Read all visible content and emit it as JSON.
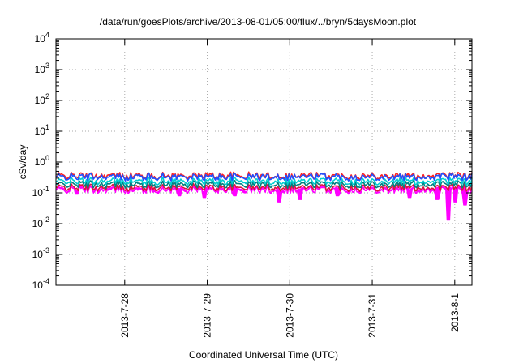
{
  "chart_data": {
    "type": "line",
    "title": "/data/run/goesPlots/archive/2013-08-01/05:00/flux/../bryn/5daysMoon.plot",
    "xlabel": "Coordinated Universal Time (UTC)",
    "ylabel": "cSv/day",
    "yscale": "log",
    "ylim": [
      0.0001,
      10000
    ],
    "xlim": [
      "2013-07-27 04:00",
      "2013-08-01 05:00"
    ],
    "grid": true,
    "y_ticks": [
      {
        "base": "10",
        "exp": "-4",
        "value": 0.0001
      },
      {
        "base": "10",
        "exp": "-3",
        "value": 0.001
      },
      {
        "base": "10",
        "exp": "-2",
        "value": 0.01
      },
      {
        "base": "10",
        "exp": "-1",
        "value": 0.1
      },
      {
        "base": "10",
        "exp": "0",
        "value": 1
      },
      {
        "base": "10",
        "exp": "1",
        "value": 10
      },
      {
        "base": "10",
        "exp": "2",
        "value": 100
      },
      {
        "base": "10",
        "exp": "3",
        "value": 1000
      },
      {
        "base": "10",
        "exp": "4",
        "value": 10000
      }
    ],
    "x_ticks": [
      {
        "label": "2013-7-28",
        "date": "2013-07-28 00:00"
      },
      {
        "label": "2013-7-29",
        "date": "2013-07-29 00:00"
      },
      {
        "label": "2013-7-30",
        "date": "2013-07-30 00:00"
      },
      {
        "label": "2013-7-31",
        "date": "2013-07-31 00:00"
      },
      {
        "label": "2013-8-1",
        "date": "2013-08-01 00:00"
      }
    ],
    "series": [
      {
        "color": "#ff00ff",
        "level": 0.12,
        "fill": true,
        "dips": [
          {
            "date": "2013-07-27 10:00",
            "value": 0.09
          },
          {
            "date": "2013-07-28 16:00",
            "value": 0.08
          },
          {
            "date": "2013-07-28 23:00",
            "value": 0.07
          },
          {
            "date": "2013-07-29 08:00",
            "value": 0.08
          },
          {
            "date": "2013-07-29 21:00",
            "value": 0.05
          },
          {
            "date": "2013-07-30 03:00",
            "value": 0.06
          },
          {
            "date": "2013-07-30 14:00",
            "value": 0.08
          },
          {
            "date": "2013-07-31 11:00",
            "value": 0.07
          },
          {
            "date": "2013-08-01 00:00",
            "value": 0.05
          },
          {
            "date": "2013-07-31 19:00",
            "value": 0.06
          },
          {
            "date": "2013-07-31 22:00",
            "value": 0.013
          },
          {
            "date": "2013-08-01 03:00",
            "value": 0.04
          }
        ]
      },
      {
        "color": "#dc143c",
        "level": 0.15
      },
      {
        "color": "#008080",
        "level": 0.19
      },
      {
        "color": "#00ced1",
        "level": 0.24
      },
      {
        "color": "#ff2020",
        "level": 0.36
      },
      {
        "color": "#1e50ff",
        "level": 0.33
      }
    ]
  }
}
